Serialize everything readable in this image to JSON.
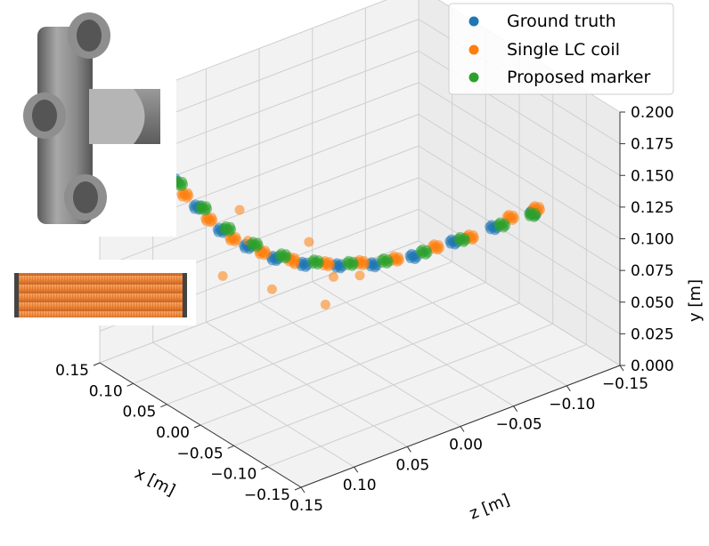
{
  "chart_data": {
    "type": "scatter",
    "projection": "3d",
    "title": "",
    "xlabel": "x [m]",
    "ylabel": "y [m]",
    "zlabel": "z [m]",
    "xlim": [
      -0.15,
      0.15
    ],
    "ylim": [
      0.0,
      0.2
    ],
    "zlim": [
      -0.15,
      0.15
    ],
    "x_ticks": [
      "−0.15",
      "−0.10",
      "−0.05",
      "0.00",
      "0.05",
      "0.10",
      "0.15"
    ],
    "y_ticks": [
      "0.000",
      "0.025",
      "0.050",
      "0.075",
      "0.100",
      "0.125",
      "0.150",
      "0.175",
      "0.200"
    ],
    "z_ticks": [
      "0.15",
      "0.10",
      "0.05",
      "0.00",
      "−0.05",
      "−0.10",
      "−0.15"
    ],
    "grid": true,
    "legend": "top-right",
    "series": [
      {
        "name": "Ground truth",
        "color": "#1f77b4",
        "points": [
          [
            -0.1,
            0.12,
            -0.1
          ],
          [
            -0.08,
            0.11,
            -0.075
          ],
          [
            -0.06,
            0.1,
            -0.05
          ],
          [
            -0.04,
            0.09,
            -0.025
          ],
          [
            -0.02,
            0.085,
            0.0
          ],
          [
            0.0,
            0.084,
            0.02
          ],
          [
            0.02,
            0.085,
            0.04
          ],
          [
            0.04,
            0.088,
            0.055
          ],
          [
            0.06,
            0.095,
            0.068
          ],
          [
            0.08,
            0.105,
            0.08
          ],
          [
            0.1,
            0.12,
            0.09
          ],
          [
            0.12,
            0.138,
            0.1
          ],
          [
            0.135,
            0.16,
            0.105
          ],
          [
            0.145,
            0.175,
            0.11
          ]
        ]
      },
      {
        "name": "Single LC coil",
        "color": "#ff7f0e",
        "points": [
          [
            -0.105,
            0.125,
            -0.1
          ],
          [
            -0.09,
            0.118,
            -0.085
          ],
          [
            -0.07,
            0.104,
            -0.06
          ],
          [
            -0.05,
            0.096,
            -0.04
          ],
          [
            -0.03,
            0.088,
            -0.015
          ],
          [
            -0.01,
            0.085,
            0.005
          ],
          [
            0.01,
            0.084,
            0.025
          ],
          [
            0.03,
            0.087,
            0.045
          ],
          [
            0.05,
            0.091,
            0.06
          ],
          [
            0.07,
            0.1,
            0.075
          ],
          [
            0.09,
            0.112,
            0.085
          ],
          [
            0.11,
            0.128,
            0.095
          ],
          [
            0.13,
            0.15,
            0.102
          ],
          [
            0.142,
            0.172,
            0.108
          ],
          [
            0.0,
            0.07,
            0.0
          ],
          [
            0.02,
            0.075,
            0.07
          ],
          [
            0.05,
            0.072,
            0.03
          ],
          [
            0.04,
            0.11,
            0.08
          ],
          [
            -0.02,
            0.068,
            0.045
          ],
          [
            0.06,
            0.08,
            0.01
          ],
          [
            0.08,
            0.09,
            0.12
          ],
          [
            -0.04,
            0.098,
            0.05
          ],
          [
            0.03,
            0.095,
            0.11
          ],
          [
            0.1,
            0.105,
            0.05
          ]
        ]
      },
      {
        "name": "Proposed marker",
        "color": "#2ca02c",
        "points": [
          [
            -0.102,
            0.12,
            -0.098
          ],
          [
            -0.085,
            0.112,
            -0.08
          ],
          [
            -0.065,
            0.102,
            -0.055
          ],
          [
            -0.045,
            0.093,
            -0.032
          ],
          [
            -0.025,
            0.087,
            -0.008
          ],
          [
            -0.005,
            0.085,
            0.012
          ],
          [
            0.015,
            0.086,
            0.032
          ],
          [
            0.035,
            0.09,
            0.05
          ],
          [
            0.055,
            0.097,
            0.064
          ],
          [
            0.075,
            0.107,
            0.077
          ],
          [
            0.095,
            0.12,
            0.087
          ],
          [
            0.115,
            0.136,
            0.097
          ],
          [
            0.13,
            0.155,
            0.103
          ],
          [
            0.143,
            0.178,
            0.109
          ]
        ]
      }
    ]
  },
  "insets": [
    {
      "name": "marker-model-image",
      "color": "#7c7c7c"
    },
    {
      "name": "lc-coil-image",
      "color": "#f08a3c"
    }
  ]
}
